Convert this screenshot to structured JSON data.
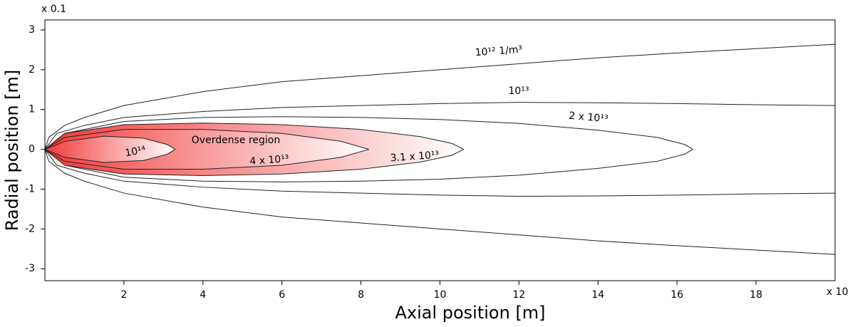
{
  "chart_data": {
    "type": "contour",
    "x_label": "Axial position [m]",
    "y_label": "Radial position [m]",
    "x_multiplier": "x 10",
    "y_multiplier": "x 0.1",
    "xlim": [
      0,
      20
    ],
    "ylim": [
      -3.3,
      3.25
    ],
    "xticks": [
      2,
      4,
      6,
      8,
      10,
      12,
      14,
      16,
      18
    ],
    "yticks": [
      -3,
      -2,
      -1,
      0,
      1,
      2,
      3
    ],
    "line_color": "#222222",
    "annotation": "Overdense region",
    "series": [
      {
        "name": "10¹² 1/m³",
        "x": [
          0,
          0.1,
          0.5,
          1,
          2,
          4,
          6,
          8,
          10,
          12,
          14,
          16,
          18,
          20
        ],
        "values": [
          0,
          0.3,
          0.6,
          0.8,
          1.1,
          1.45,
          1.7,
          1.85,
          2.0,
          2.15,
          2.3,
          2.42,
          2.53,
          2.64
        ]
      },
      {
        "name": "10¹³",
        "x": [
          0,
          0.3,
          1,
          2,
          4,
          6,
          8,
          10,
          12,
          14,
          16,
          18,
          20
        ],
        "values": [
          0,
          0.4,
          0.6,
          0.8,
          0.95,
          1.05,
          1.1,
          1.15,
          1.18,
          1.17,
          1.15,
          1.12,
          1.1
        ]
      },
      {
        "name": "2 x 10¹³",
        "x": [
          0,
          0.5,
          2,
          4,
          6,
          8,
          10,
          12,
          14,
          15.5,
          16.2,
          16.4
        ],
        "values": [
          0,
          0.4,
          0.7,
          0.8,
          0.82,
          0.8,
          0.75,
          0.65,
          0.48,
          0.3,
          0.12,
          0
        ]
      },
      {
        "name": "3.1 x 10¹³",
        "x": [
          0,
          0.5,
          2,
          4,
          6,
          8,
          9.5,
          10.3,
          10.6
        ],
        "values": [
          0,
          0.4,
          0.62,
          0.66,
          0.62,
          0.5,
          0.32,
          0.15,
          0
        ]
      },
      {
        "name": "4 x 10¹³",
        "x": [
          0,
          0.5,
          2,
          4,
          6,
          7.5,
          8.2
        ],
        "values": [
          0,
          0.3,
          0.5,
          0.5,
          0.4,
          0.2,
          0
        ]
      },
      {
        "name": "10¹⁴",
        "x": [
          0,
          0.5,
          1.5,
          2.5,
          3.1,
          3.3
        ],
        "values": [
          0,
          0.2,
          0.33,
          0.28,
          0.12,
          0
        ]
      }
    ]
  }
}
